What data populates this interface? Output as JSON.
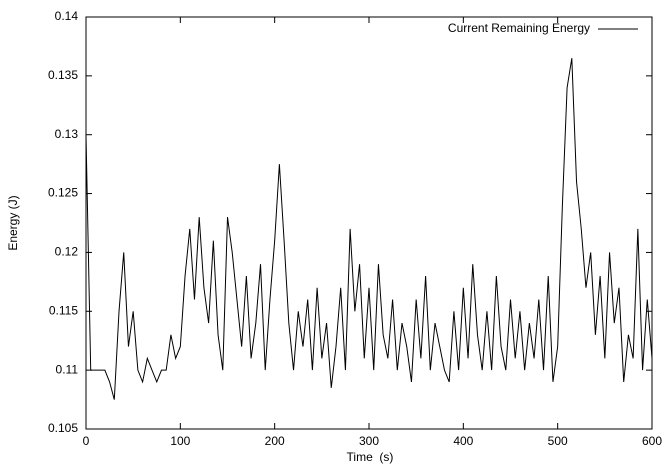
{
  "chart_data": {
    "type": "line",
    "xlabel": "Time  (s)",
    "ylabel": "Energy (J)",
    "x": [
      0,
      5,
      10,
      15,
      20,
      25,
      30,
      35,
      40,
      45,
      50,
      55,
      60,
      65,
      70,
      75,
      80,
      85,
      90,
      95,
      100,
      105,
      110,
      115,
      120,
      125,
      130,
      135,
      140,
      145,
      150,
      155,
      160,
      165,
      170,
      175,
      180,
      185,
      190,
      195,
      200,
      205,
      210,
      215,
      220,
      225,
      230,
      235,
      240,
      245,
      250,
      255,
      260,
      265,
      270,
      275,
      280,
      285,
      290,
      295,
      300,
      305,
      310,
      315,
      320,
      325,
      330,
      335,
      340,
      345,
      350,
      355,
      360,
      365,
      370,
      375,
      380,
      385,
      390,
      395,
      400,
      405,
      410,
      415,
      420,
      425,
      430,
      435,
      440,
      445,
      450,
      455,
      460,
      465,
      470,
      475,
      480,
      485,
      490,
      495,
      500,
      505,
      510,
      515,
      520,
      525,
      530,
      535,
      540,
      545,
      550,
      555,
      560,
      565,
      570,
      575,
      580,
      585,
      590,
      595,
      600
    ],
    "series": [
      {
        "name": "Current Remaining Energy",
        "color": "#000000",
        "values": [
          0.13,
          0.11,
          0.11,
          0.11,
          0.11,
          0.109,
          0.1075,
          0.115,
          0.12,
          0.112,
          0.115,
          0.11,
          0.109,
          0.111,
          0.11,
          0.109,
          0.11,
          0.11,
          0.113,
          0.111,
          0.112,
          0.118,
          0.122,
          0.116,
          0.123,
          0.117,
          0.114,
          0.121,
          0.113,
          0.11,
          0.123,
          0.12,
          0.116,
          0.112,
          0.118,
          0.111,
          0.114,
          0.119,
          0.11,
          0.116,
          0.121,
          0.1275,
          0.121,
          0.114,
          0.11,
          0.115,
          0.112,
          0.116,
          0.11,
          0.117,
          0.111,
          0.114,
          0.1085,
          0.112,
          0.117,
          0.11,
          0.122,
          0.115,
          0.119,
          0.111,
          0.117,
          0.11,
          0.119,
          0.113,
          0.111,
          0.116,
          0.11,
          0.114,
          0.112,
          0.109,
          0.116,
          0.111,
          0.118,
          0.11,
          0.114,
          0.112,
          0.11,
          0.109,
          0.115,
          0.11,
          0.117,
          0.111,
          0.119,
          0.113,
          0.11,
          0.115,
          0.11,
          0.118,
          0.112,
          0.11,
          0.116,
          0.111,
          0.115,
          0.11,
          0.114,
          0.111,
          0.116,
          0.11,
          0.118,
          0.109,
          0.112,
          0.124,
          0.134,
          0.1365,
          0.126,
          0.122,
          0.117,
          0.12,
          0.113,
          0.118,
          0.111,
          0.12,
          0.114,
          0.117,
          0.109,
          0.113,
          0.111,
          0.122,
          0.11,
          0.116,
          0.111
        ]
      }
    ],
    "xlim": [
      0,
      600
    ],
    "xticks": [
      0,
      100,
      200,
      300,
      400,
      500,
      600
    ],
    "ylim": [
      0.105,
      0.14
    ],
    "yticks": [
      0.105,
      0.11,
      0.115,
      0.12,
      0.125,
      0.13,
      0.135,
      0.14
    ],
    "legend": "upper-right"
  }
}
